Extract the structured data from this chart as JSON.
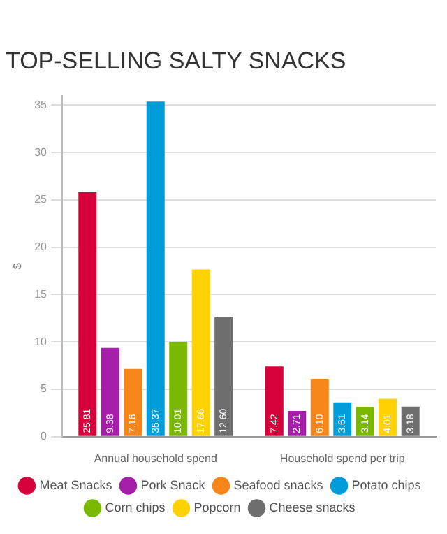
{
  "chart_data": {
    "type": "bar",
    "title": "TOP-SELLING SALTY SNACKS",
    "ylabel": "$",
    "categories": [
      "Annual household spend",
      "Household spend per trip"
    ],
    "series": [
      {
        "name": "Meat Snacks",
        "color": "#d6003a",
        "values": [
          25.81,
          7.42
        ],
        "value_labels": [
          "25.81",
          "7.42"
        ]
      },
      {
        "name": "Pork Snack",
        "color": "#a51fa8",
        "values": [
          9.38,
          2.71
        ],
        "value_labels": [
          "9.38",
          "2.71"
        ]
      },
      {
        "name": "Seafood snacks",
        "color": "#f7861a",
        "values": [
          7.16,
          6.1
        ],
        "value_labels": [
          "7.16",
          "6.10"
        ]
      },
      {
        "name": "Potato chips",
        "color": "#009ddb",
        "values": [
          35.37,
          3.61
        ],
        "value_labels": [
          "35.37",
          "3.61"
        ]
      },
      {
        "name": "Corn chips",
        "color": "#7ab800",
        "values": [
          10.01,
          3.14
        ],
        "value_labels": [
          "10.01",
          "3.14"
        ]
      },
      {
        "name": "Popcorn",
        "color": "#ffd200",
        "values": [
          17.66,
          4.01
        ],
        "value_labels": [
          "17.66",
          "4.01"
        ]
      },
      {
        "name": "Cheese snacks",
        "color": "#6e6e6e",
        "values": [
          12.6,
          3.18
        ],
        "value_labels": [
          "12.60",
          "3.18"
        ]
      }
    ],
    "ylim": [
      0,
      36
    ],
    "yticks": [
      0,
      5,
      10,
      15,
      20,
      25,
      30,
      35
    ],
    "grid": "y",
    "legend": "bottom"
  }
}
